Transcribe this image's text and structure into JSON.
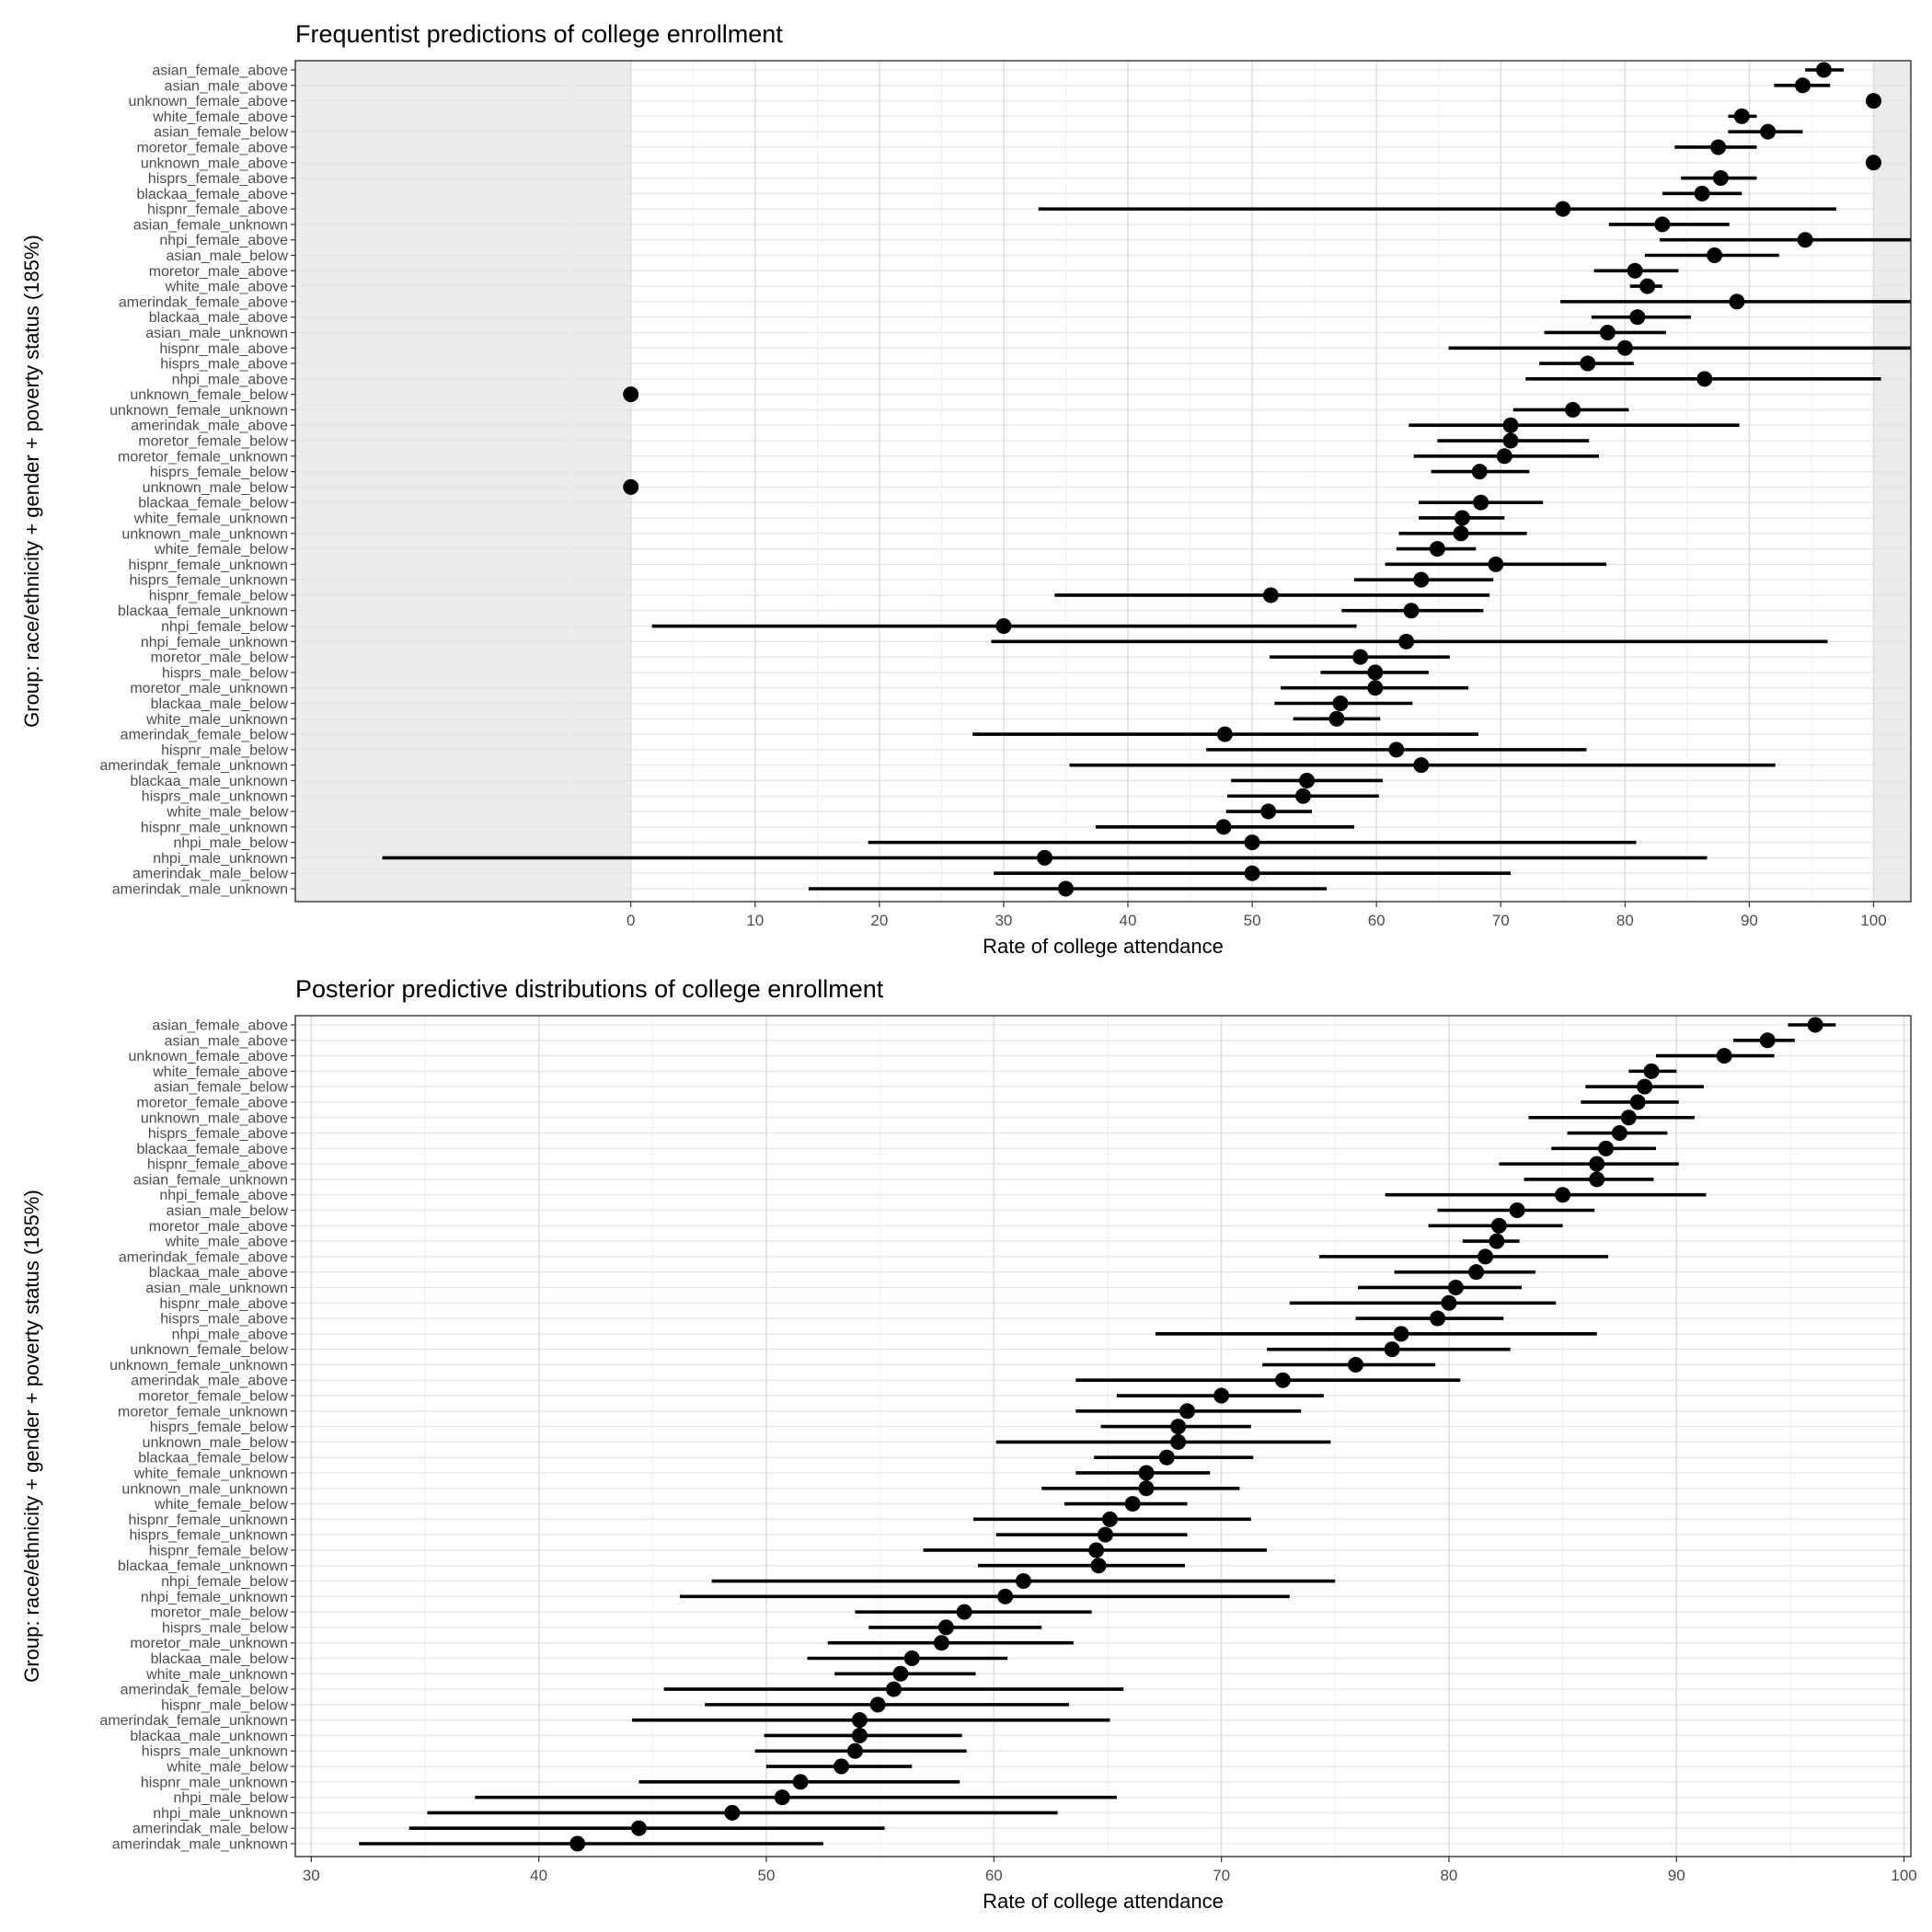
{
  "chart_data": [
    {
      "type": "scatter",
      "subtype": "point-range",
      "title": "Frequentist predictions of college enrollment",
      "xlabel": "Rate of college attendance",
      "ylabel": "Group: race/ethnicity + gender + poverty status (185%)",
      "xlim": [
        -27,
        103
      ],
      "xticks": [
        0,
        10,
        20,
        30,
        40,
        50,
        60,
        70,
        80,
        90,
        100
      ],
      "grid": true,
      "shaded_regions": [
        [
          -27,
          0
        ],
        [
          100,
          103
        ]
      ],
      "categories": [
        "asian_female_above",
        "asian_male_above",
        "unknown_female_above",
        "white_female_above",
        "asian_female_below",
        "moretor_female_above",
        "unknown_male_above",
        "hisprs_female_above",
        "blackaa_female_above",
        "hispnr_female_above",
        "asian_female_unknown",
        "nhpi_female_above",
        "asian_male_below",
        "moretor_male_above",
        "white_male_above",
        "amerindak_female_above",
        "blackaa_male_above",
        "asian_male_unknown",
        "hispnr_male_above",
        "hisprs_male_above",
        "nhpi_male_above",
        "unknown_female_below",
        "unknown_female_unknown",
        "amerindak_male_above",
        "moretor_female_below",
        "moretor_female_unknown",
        "hisprs_female_below",
        "unknown_male_below",
        "blackaa_female_below",
        "white_female_unknown",
        "unknown_male_unknown",
        "white_female_below",
        "hispnr_female_unknown",
        "hisprs_female_unknown",
        "hispnr_female_below",
        "blackaa_female_unknown",
        "nhpi_female_below",
        "nhpi_female_unknown",
        "moretor_male_below",
        "hisprs_male_below",
        "moretor_male_unknown",
        "blackaa_male_below",
        "white_male_unknown",
        "amerindak_female_below",
        "hispnr_male_below",
        "amerindak_female_unknown",
        "blackaa_male_unknown",
        "hisprs_male_unknown",
        "white_male_below",
        "hispnr_male_unknown",
        "nhpi_male_below",
        "nhpi_male_unknown",
        "amerindak_male_below",
        "amerindak_male_unknown"
      ],
      "estimate": [
        96.0,
        94.3,
        100,
        89.4,
        91.5,
        87.5,
        100,
        87.7,
        86.2,
        75.0,
        83.0,
        94.5,
        87.2,
        80.8,
        81.8,
        89.0,
        81.0,
        78.6,
        80.0,
        77.0,
        86.4,
        0,
        75.8,
        70.8,
        70.8,
        70.3,
        68.3,
        0,
        68.4,
        66.9,
        66.8,
        64.9,
        69.6,
        63.6,
        51.5,
        62.8,
        30.0,
        62.4,
        58.7,
        59.9,
        59.9,
        57.1,
        56.8,
        47.8,
        61.6,
        63.6,
        54.4,
        54.1,
        51.3,
        47.7,
        50.0,
        33.3,
        50.0,
        35.0
      ],
      "lower": [
        94.5,
        92.0,
        null,
        88.3,
        88.3,
        84.0,
        null,
        84.5,
        83.0,
        32.8,
        78.7,
        82.8,
        81.6,
        77.5,
        80.4,
        74.8,
        77.3,
        73.5,
        65.8,
        73.1,
        72.0,
        null,
        71.0,
        62.6,
        64.9,
        63.0,
        64.4,
        null,
        63.4,
        63.4,
        61.8,
        61.6,
        60.7,
        58.2,
        34.1,
        57.2,
        1.7,
        29.0,
        51.4,
        55.5,
        52.3,
        51.8,
        53.3,
        27.5,
        46.3,
        35.3,
        48.3,
        48.0,
        47.9,
        37.4,
        19.1,
        -20.0,
        29.2,
        14.3
      ],
      "upper": [
        97.6,
        96.5,
        null,
        90.6,
        94.3,
        90.6,
        null,
        90.6,
        89.4,
        97.0,
        88.4,
        104.5,
        92.4,
        84.3,
        83.0,
        103.5,
        85.3,
        83.3,
        104.2,
        80.7,
        100.6,
        null,
        80.3,
        89.2,
        77.1,
        77.9,
        72.3,
        null,
        73.4,
        70.3,
        72.1,
        68.0,
        78.5,
        69.4,
        69.1,
        68.6,
        58.4,
        96.3,
        65.9,
        64.2,
        67.4,
        62.9,
        60.3,
        68.2,
        76.9,
        92.1,
        60.5,
        60.2,
        54.8,
        58.2,
        80.9,
        86.6,
        70.8,
        56.0
      ]
    },
    {
      "type": "scatter",
      "subtype": "point-range",
      "title": "Posterior predictive distributions of college enrollment",
      "xlabel": "Rate of college attendance",
      "ylabel": "Group: race/ethnicity + gender + poverty status (185%)",
      "xlim": [
        29.3,
        100.3
      ],
      "xticks": [
        30,
        40,
        50,
        60,
        70,
        80,
        90,
        100
      ],
      "grid": true,
      "categories": [
        "asian_female_above",
        "asian_male_above",
        "unknown_female_above",
        "white_female_above",
        "asian_female_below",
        "moretor_female_above",
        "unknown_male_above",
        "hisprs_female_above",
        "blackaa_female_above",
        "hispnr_female_above",
        "asian_female_unknown",
        "nhpi_female_above",
        "asian_male_below",
        "moretor_male_above",
        "white_male_above",
        "amerindak_female_above",
        "blackaa_male_above",
        "asian_male_unknown",
        "hispnr_male_above",
        "hisprs_male_above",
        "nhpi_male_above",
        "unknown_female_below",
        "unknown_female_unknown",
        "amerindak_male_above",
        "moretor_female_below",
        "moretor_female_unknown",
        "hisprs_female_below",
        "unknown_male_below",
        "blackaa_female_below",
        "white_female_unknown",
        "unknown_male_unknown",
        "white_female_below",
        "hispnr_female_unknown",
        "hisprs_female_unknown",
        "hispnr_female_below",
        "blackaa_female_unknown",
        "nhpi_female_below",
        "nhpi_female_unknown",
        "moretor_male_below",
        "hisprs_male_below",
        "moretor_male_unknown",
        "blackaa_male_below",
        "white_male_unknown",
        "amerindak_female_below",
        "hispnr_male_below",
        "amerindak_female_unknown",
        "blackaa_male_unknown",
        "hisprs_male_unknown",
        "white_male_below",
        "hispnr_male_unknown",
        "nhpi_male_below",
        "nhpi_male_unknown",
        "amerindak_male_below",
        "amerindak_male_unknown"
      ],
      "estimate": [
        96.1,
        94.0,
        92.1,
        88.9,
        88.6,
        88.3,
        87.9,
        87.5,
        86.9,
        86.5,
        86.5,
        85.0,
        83.0,
        82.2,
        82.1,
        81.6,
        81.2,
        80.3,
        80.0,
        79.5,
        77.9,
        77.5,
        75.9,
        72.7,
        70.0,
        68.5,
        68.1,
        68.1,
        67.6,
        66.7,
        66.7,
        66.1,
        65.1,
        64.9,
        64.5,
        64.6,
        61.3,
        60.5,
        58.7,
        57.9,
        57.7,
        56.4,
        55.9,
        55.6,
        54.9,
        54.1,
        54.1,
        53.9,
        53.3,
        51.5,
        50.7,
        48.5,
        44.4,
        41.7
      ],
      "lower": [
        94.9,
        92.5,
        89.1,
        87.9,
        86.0,
        85.8,
        83.5,
        85.2,
        84.5,
        82.2,
        83.3,
        77.2,
        79.5,
        79.1,
        80.6,
        74.3,
        77.6,
        76.0,
        73.0,
        75.9,
        67.1,
        72.0,
        71.8,
        63.6,
        65.4,
        63.6,
        64.7,
        60.1,
        64.4,
        63.6,
        62.1,
        63.1,
        59.1,
        60.1,
        56.9,
        59.3,
        47.6,
        46.2,
        53.9,
        54.5,
        52.7,
        51.8,
        53.0,
        45.5,
        47.3,
        44.1,
        49.9,
        49.5,
        50.0,
        44.4,
        37.2,
        35.1,
        34.3,
        32.1
      ],
      "upper": [
        97.0,
        95.2,
        94.3,
        90.0,
        91.2,
        90.1,
        90.8,
        89.6,
        89.1,
        90.1,
        89.0,
        91.3,
        86.4,
        85.0,
        83.1,
        87.0,
        83.8,
        83.2,
        84.7,
        82.4,
        86.5,
        82.7,
        79.4,
        80.5,
        74.5,
        73.5,
        71.3,
        74.8,
        71.4,
        69.5,
        70.8,
        68.5,
        71.3,
        68.5,
        72.0,
        68.4,
        75.0,
        73.0,
        64.3,
        62.1,
        63.5,
        60.6,
        59.2,
        65.7,
        63.3,
        65.1,
        58.6,
        58.8,
        56.4,
        58.5,
        65.4,
        62.8,
        55.2,
        52.5
      ]
    }
  ]
}
